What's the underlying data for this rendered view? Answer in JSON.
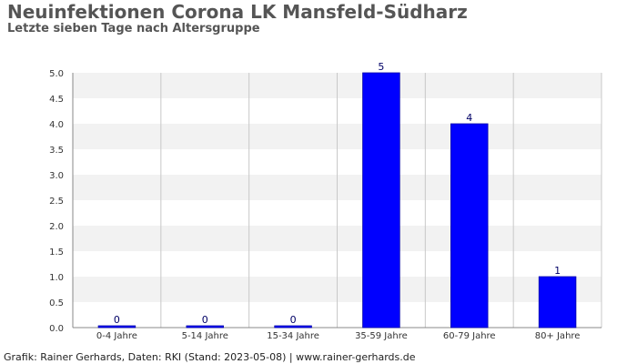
{
  "chart_data": {
    "type": "bar",
    "title": "Neuinfektionen Corona LK Mansfeld-Südharz",
    "subtitle": "Letzte sieben Tage nach Altersgruppe",
    "categories": [
      "0-4 Jahre",
      "5-14 Jahre",
      "15-34 Jahre",
      "35-59 Jahre",
      "60-79 Jahre",
      "80+ Jahre"
    ],
    "values": [
      0,
      0,
      0,
      5,
      4,
      1
    ],
    "ylim": [
      0,
      5
    ],
    "yticks": [
      "0.0",
      "0.5",
      "1.0",
      "1.5",
      "2.0",
      "2.5",
      "3.0",
      "3.5",
      "4.0",
      "4.5",
      "5.0"
    ],
    "xlabel": "",
    "ylabel": "",
    "grid": true,
    "colors": {
      "bar": "#0000ff",
      "bar_edge": "#0000aa",
      "band": "#f2f2f2",
      "gridline": "#c8c8c8",
      "axis": "#888888",
      "label": "#333333",
      "value_label": "#000066"
    }
  },
  "footer": "Grafik: Rainer Gerhards, Daten: RKI (Stand: 2023-05-08) | www.rainer-gerhards.de"
}
